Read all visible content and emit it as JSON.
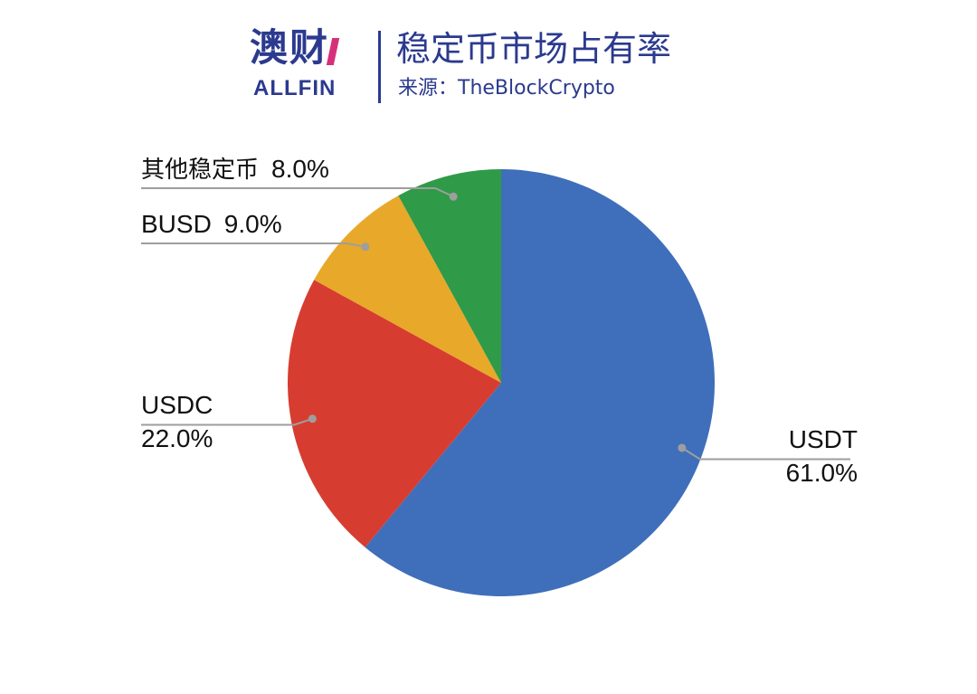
{
  "header": {
    "logo_cn": "澳财",
    "logo_en": "ALLFIN",
    "title": "稳定币市场占有率",
    "source": "来源：TheBlockCrypto"
  },
  "chart_data": {
    "type": "pie",
    "title": "稳定币市场占有率",
    "categories": [
      "USDT",
      "USDC",
      "BUSD",
      "其他稳定币"
    ],
    "values": [
      61.0,
      22.0,
      9.0,
      8.0
    ],
    "value_labels": [
      "61.0%",
      "22.0%",
      "9.0%",
      "8.0%"
    ],
    "start_angle_deg": 0,
    "direction": "clockwise",
    "colors": [
      "#3f6fba",
      "#d63d30",
      "#e8a82a",
      "#2f9a48"
    ],
    "leader_line_color": "#9e9e9e"
  }
}
